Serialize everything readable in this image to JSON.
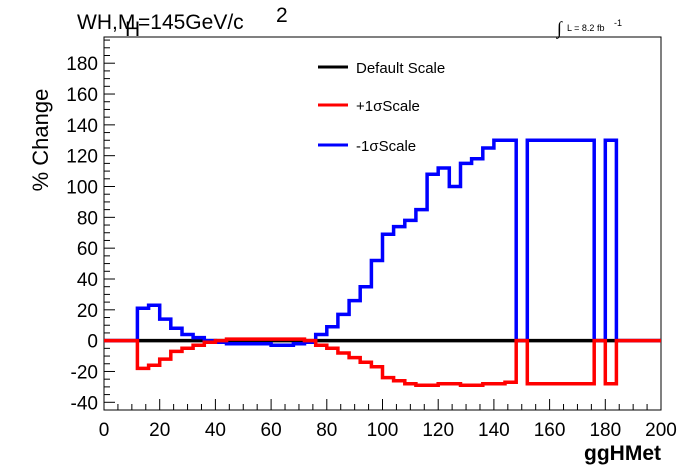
{
  "header": {
    "title_main": "WH,M",
    "title_sub": "H",
    "title_rest": "=145GeV/c",
    "title_sup": "2",
    "lumi_symbol": "∫",
    "lumi_text": "L = 8.2 fb",
    "lumi_sup": "-1"
  },
  "chart_data": {
    "type": "line",
    "style": "step",
    "xlabel": "ggHMet",
    "ylabel": "% Change",
    "xlim": [
      0,
      200
    ],
    "ylim": [
      -45,
      197
    ],
    "xticks": [
      0,
      20,
      40,
      60,
      80,
      100,
      120,
      140,
      160,
      180,
      200
    ],
    "yticks": [
      -40,
      -20,
      0,
      20,
      40,
      60,
      80,
      100,
      120,
      140,
      160,
      180
    ],
    "grid": false,
    "legend_position": "top-center",
    "series": [
      {
        "name": "Default Scale",
        "color": "#000000",
        "edges": [
          0,
          200
        ],
        "values": [
          0
        ]
      },
      {
        "name": "+1σScale",
        "color": "#ff0000",
        "edges": [
          0,
          12,
          16,
          20,
          24,
          28,
          32,
          36,
          40,
          44,
          48,
          52,
          56,
          60,
          64,
          68,
          72,
          76,
          80,
          84,
          88,
          92,
          96,
          100,
          104,
          108,
          112,
          116,
          120,
          124,
          128,
          132,
          136,
          140,
          144,
          148,
          152,
          176,
          180,
          184,
          200
        ],
        "values": [
          0,
          -18,
          -16,
          -12,
          -7,
          -5,
          -3,
          -1,
          0,
          1,
          1,
          1,
          1,
          1,
          1,
          1,
          0,
          -3,
          -5,
          -8,
          -11,
          -14,
          -17,
          -24,
          -26,
          -28,
          -29,
          -29,
          -28,
          -28,
          -29,
          -29,
          -28,
          -28,
          -27,
          0,
          -28,
          0,
          -28,
          0
        ]
      },
      {
        "name": "-1σScale",
        "color": "#0000ff",
        "edges": [
          0,
          12,
          16,
          20,
          24,
          28,
          32,
          36,
          40,
          44,
          48,
          52,
          56,
          60,
          64,
          68,
          72,
          76,
          80,
          84,
          88,
          92,
          96,
          100,
          104,
          108,
          112,
          116,
          120,
          124,
          128,
          132,
          136,
          140,
          144,
          148,
          152,
          176,
          180,
          184,
          200
        ],
        "values": [
          0,
          21,
          23,
          14,
          8,
          4,
          2,
          0,
          -1,
          -2,
          -2,
          -2,
          -2,
          -3,
          -3,
          -2,
          -1,
          4,
          9,
          17,
          26,
          35,
          52,
          69,
          74,
          78,
          85,
          108,
          112,
          100,
          115,
          118,
          125,
          130,
          130,
          0,
          130,
          0,
          130,
          0
        ]
      }
    ]
  }
}
